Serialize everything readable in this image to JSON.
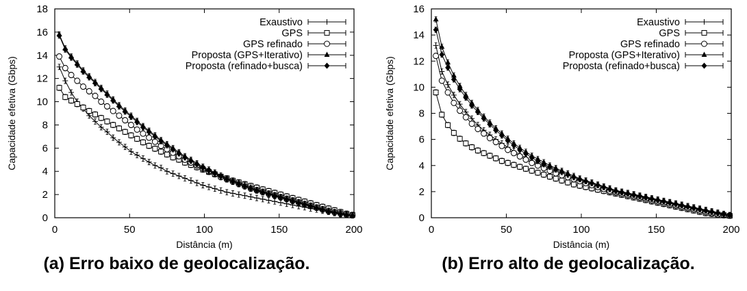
{
  "chart_data": [
    {
      "type": "line",
      "caption": "(a) Erro baixo de geolocalização.",
      "xlabel": "Distância (m)",
      "ylabel": "Capacidade efetiva (Gbps)",
      "xlim": [
        0,
        200
      ],
      "ylim": [
        0,
        18
      ],
      "xticks": [
        0,
        50,
        100,
        150,
        200
      ],
      "yticks": [
        0,
        2,
        4,
        6,
        8,
        10,
        12,
        14,
        16,
        18
      ],
      "grid": false,
      "legend_position": "top-right",
      "x": [
        3,
        7,
        11,
        15,
        19,
        23,
        27,
        31,
        35,
        39,
        43,
        47,
        51,
        55,
        59,
        63,
        67,
        71,
        75,
        79,
        83,
        87,
        91,
        95,
        99,
        103,
        107,
        111,
        115,
        119,
        123,
        127,
        131,
        135,
        139,
        143,
        147,
        151,
        155,
        159,
        163,
        167,
        171,
        175,
        179,
        183,
        187,
        191,
        195,
        199
      ],
      "series": [
        {
          "name": "Exaustivo",
          "marker": "plus",
          "values": [
            13.0,
            11.8,
            10.8,
            10.0,
            9.4,
            8.8,
            8.3,
            7.8,
            7.4,
            6.9,
            6.5,
            6.1,
            5.7,
            5.4,
            5.1,
            4.8,
            4.5,
            4.3,
            4.0,
            3.8,
            3.6,
            3.4,
            3.2,
            3.0,
            2.8,
            2.65,
            2.5,
            2.35,
            2.2,
            2.1,
            2.0,
            1.9,
            1.8,
            1.7,
            1.6,
            1.5,
            1.4,
            1.3,
            1.2,
            1.1,
            1.0,
            0.9,
            0.8,
            0.7,
            0.6,
            0.5,
            0.4,
            0.3,
            0.25,
            0.2
          ]
        },
        {
          "name": "GPS",
          "marker": "square",
          "values": [
            11.2,
            10.4,
            10.1,
            9.8,
            9.5,
            9.2,
            8.9,
            8.6,
            8.3,
            8.0,
            7.7,
            7.4,
            7.1,
            6.8,
            6.5,
            6.2,
            5.95,
            5.7,
            5.45,
            5.2,
            5.0,
            4.75,
            4.55,
            4.35,
            4.15,
            3.95,
            3.75,
            3.55,
            3.4,
            3.2,
            3.05,
            2.9,
            2.75,
            2.6,
            2.45,
            2.3,
            2.15,
            2.0,
            1.85,
            1.7,
            1.55,
            1.4,
            1.25,
            1.1,
            0.95,
            0.8,
            0.65,
            0.5,
            0.35,
            0.25
          ]
        },
        {
          "name": "GPS refinado",
          "marker": "circle",
          "values": [
            13.9,
            12.9,
            12.3,
            11.8,
            11.3,
            10.9,
            10.5,
            10.0,
            9.6,
            9.2,
            8.8,
            8.4,
            8.0,
            7.6,
            7.25,
            6.9,
            6.55,
            6.2,
            5.9,
            5.6,
            5.3,
            5.0,
            4.75,
            4.5,
            4.25,
            4.0,
            3.75,
            3.5,
            3.3,
            3.1,
            2.9,
            2.7,
            2.5,
            2.35,
            2.2,
            2.05,
            1.9,
            1.75,
            1.6,
            1.45,
            1.3,
            1.15,
            1.0,
            0.85,
            0.7,
            0.55,
            0.45,
            0.35,
            0.25,
            0.2
          ]
        },
        {
          "name": "Proposta (GPS+Iterativo)",
          "marker": "triangle",
          "values": [
            15.8,
            14.6,
            13.9,
            13.3,
            12.7,
            12.2,
            11.7,
            11.2,
            10.7,
            10.2,
            9.7,
            9.25,
            8.8,
            8.35,
            7.9,
            7.5,
            7.1,
            6.7,
            6.35,
            6.0,
            5.65,
            5.3,
            5.0,
            4.7,
            4.4,
            4.15,
            3.9,
            3.65,
            3.4,
            3.2,
            3.0,
            2.8,
            2.6,
            2.4,
            2.25,
            2.1,
            1.95,
            1.8,
            1.65,
            1.5,
            1.35,
            1.2,
            1.05,
            0.9,
            0.75,
            0.6,
            0.5,
            0.4,
            0.3,
            0.2
          ]
        },
        {
          "name": "Proposta (refinado+busca)",
          "marker": "diamond",
          "values": [
            15.7,
            14.5,
            13.8,
            13.2,
            12.6,
            12.1,
            11.6,
            11.1,
            10.6,
            10.1,
            9.6,
            9.15,
            8.7,
            8.25,
            7.8,
            7.4,
            7.0,
            6.6,
            6.25,
            5.9,
            5.55,
            5.2,
            4.9,
            4.6,
            4.3,
            4.05,
            3.8,
            3.55,
            3.3,
            3.1,
            2.9,
            2.7,
            2.5,
            2.35,
            2.2,
            2.05,
            1.9,
            1.75,
            1.6,
            1.45,
            1.3,
            1.15,
            1.0,
            0.85,
            0.7,
            0.55,
            0.45,
            0.35,
            0.25,
            0.2
          ]
        }
      ]
    },
    {
      "type": "line",
      "caption": "(b) Erro alto de geolocalização.",
      "xlabel": "Distância (m)",
      "ylabel": "Capacidade efetiva (Gbps)",
      "xlim": [
        0,
        200
      ],
      "ylim": [
        0,
        16
      ],
      "xticks": [
        0,
        50,
        100,
        150,
        200
      ],
      "yticks": [
        0,
        2,
        4,
        6,
        8,
        10,
        12,
        14,
        16
      ],
      "grid": false,
      "legend_position": "top-right",
      "x": [
        3,
        7,
        11,
        15,
        19,
        23,
        27,
        31,
        35,
        39,
        43,
        47,
        51,
        55,
        59,
        63,
        67,
        71,
        75,
        79,
        83,
        87,
        91,
        95,
        99,
        103,
        107,
        111,
        115,
        119,
        123,
        127,
        131,
        135,
        139,
        143,
        147,
        151,
        155,
        159,
        163,
        167,
        171,
        175,
        179,
        183,
        187,
        191,
        195,
        199
      ],
      "series": [
        {
          "name": "Exaustivo",
          "marker": "plus",
          "values": [
            13.2,
            11.2,
            10.2,
            9.4,
            8.7,
            8.1,
            7.6,
            7.1,
            6.7,
            6.35,
            6.0,
            5.7,
            5.4,
            5.1,
            4.85,
            4.6,
            4.35,
            4.15,
            3.95,
            3.75,
            3.55,
            3.35,
            3.15,
            3.0,
            2.85,
            2.7,
            2.55,
            2.4,
            2.25,
            2.1,
            2.0,
            1.9,
            1.8,
            1.7,
            1.6,
            1.5,
            1.4,
            1.3,
            1.2,
            1.1,
            1.0,
            0.9,
            0.8,
            0.7,
            0.6,
            0.5,
            0.4,
            0.3,
            0.2,
            0.15
          ]
        },
        {
          "name": "GPS",
          "marker": "square",
          "values": [
            9.6,
            7.9,
            7.1,
            6.5,
            6.05,
            5.7,
            5.4,
            5.15,
            4.95,
            4.75,
            4.55,
            4.35,
            4.2,
            4.05,
            3.9,
            3.75,
            3.6,
            3.45,
            3.3,
            3.15,
            3.0,
            2.85,
            2.7,
            2.55,
            2.45,
            2.35,
            2.25,
            2.15,
            2.05,
            1.95,
            1.85,
            1.75,
            1.65,
            1.55,
            1.45,
            1.35,
            1.25,
            1.15,
            1.05,
            0.95,
            0.85,
            0.75,
            0.65,
            0.55,
            0.45,
            0.35,
            0.3,
            0.25,
            0.2,
            0.15
          ]
        },
        {
          "name": "GPS refinado",
          "marker": "circle",
          "values": [
            12.4,
            10.5,
            9.6,
            8.8,
            8.2,
            7.7,
            7.2,
            6.8,
            6.45,
            6.1,
            5.8,
            5.5,
            5.2,
            4.95,
            4.7,
            4.45,
            4.2,
            4.0,
            3.8,
            3.6,
            3.4,
            3.25,
            3.1,
            2.95,
            2.8,
            2.65,
            2.5,
            2.35,
            2.2,
            2.05,
            1.95,
            1.85,
            1.75,
            1.65,
            1.55,
            1.45,
            1.35,
            1.25,
            1.15,
            1.05,
            0.95,
            0.85,
            0.75,
            0.65,
            0.55,
            0.45,
            0.35,
            0.25,
            0.2,
            0.15
          ]
        },
        {
          "name": "Proposta (GPS+Iterativo)",
          "marker": "triangle",
          "values": [
            15.2,
            13.1,
            11.9,
            10.9,
            10.1,
            9.4,
            8.8,
            8.25,
            7.75,
            7.3,
            6.85,
            6.45,
            6.05,
            5.7,
            5.35,
            5.05,
            4.75,
            4.5,
            4.25,
            4.0,
            3.8,
            3.6,
            3.4,
            3.2,
            3.0,
            2.85,
            2.7,
            2.55,
            2.4,
            2.25,
            2.1,
            2.0,
            1.9,
            1.8,
            1.7,
            1.6,
            1.5,
            1.4,
            1.3,
            1.2,
            1.1,
            1.0,
            0.9,
            0.8,
            0.7,
            0.6,
            0.5,
            0.4,
            0.3,
            0.2
          ]
        },
        {
          "name": "Proposta (refinado+busca)",
          "marker": "diamond",
          "values": [
            14.4,
            12.5,
            11.5,
            10.6,
            9.85,
            9.2,
            8.6,
            8.1,
            7.6,
            7.15,
            6.7,
            6.3,
            5.9,
            5.55,
            5.2,
            4.9,
            4.6,
            4.35,
            4.1,
            3.9,
            3.7,
            3.5,
            3.3,
            3.1,
            2.95,
            2.8,
            2.65,
            2.5,
            2.35,
            2.2,
            2.05,
            1.95,
            1.85,
            1.75,
            1.65,
            1.55,
            1.45,
            1.35,
            1.25,
            1.15,
            1.05,
            0.95,
            0.85,
            0.75,
            0.65,
            0.55,
            0.45,
            0.35,
            0.25,
            0.2
          ]
        }
      ]
    }
  ]
}
